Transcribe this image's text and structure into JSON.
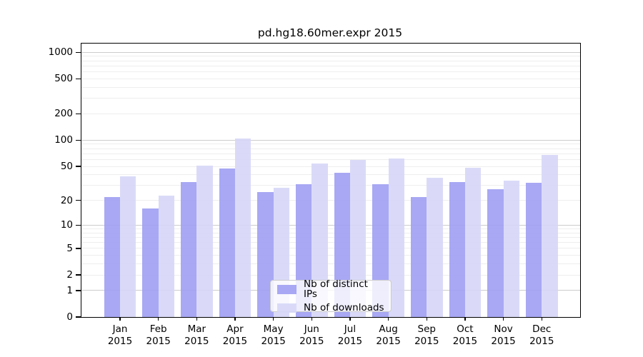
{
  "title": "pd.hg18.60mer.expr 2015",
  "chart_data": {
    "type": "bar",
    "title": "pd.hg18.60mer.expr 2015",
    "categories": [
      "Jan",
      "Feb",
      "Mar",
      "Apr",
      "May",
      "Jun",
      "Jul",
      "Aug",
      "Sep",
      "Oct",
      "Nov",
      "Dec"
    ],
    "year": "2015",
    "series": [
      {
        "name": "Nb of distinct IPs",
        "color": "#9f9ff3",
        "values": [
          22,
          16,
          33,
          47,
          25,
          31,
          42,
          31,
          22,
          33,
          27,
          32
        ]
      },
      {
        "name": "Nb of downloads",
        "color": "#d6d6f7",
        "values": [
          38,
          23,
          51,
          105,
          28,
          54,
          59,
          62,
          37,
          48,
          34,
          68
        ]
      }
    ],
    "y_ticks": [
      0,
      1,
      2,
      5,
      10,
      20,
      50,
      100,
      200,
      500,
      1000
    ],
    "y_scale": "log1p",
    "ylim": [
      0,
      1259
    ],
    "xlabel": "",
    "ylabel": "",
    "grid": true,
    "legend_position": "bottom-center"
  },
  "colors": {
    "axis": "#000000",
    "grid_major": "#cccccc",
    "grid_minor": "#eeeeee",
    "text": "#000000",
    "legend_border": "#cccccc",
    "background": "#ffffff"
  }
}
